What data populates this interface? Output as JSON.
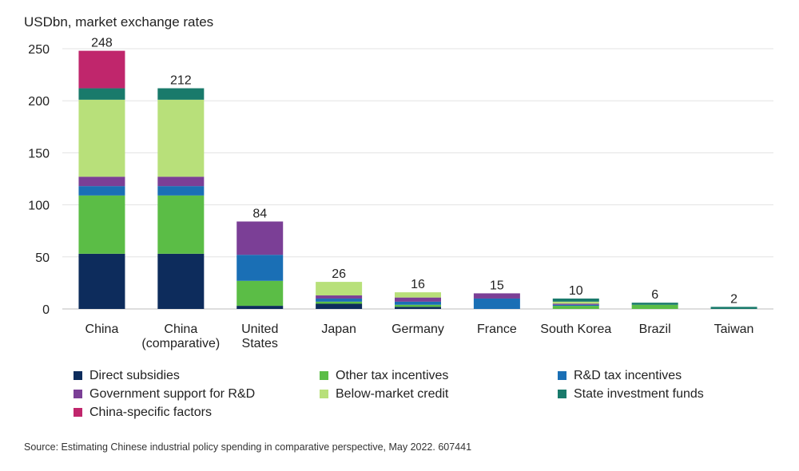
{
  "chart_data": {
    "type": "bar",
    "stacked": true,
    "ylabel": "USDbn, market exchange rates",
    "ylim": [
      0,
      250
    ],
    "yticks": [
      0,
      50,
      100,
      150,
      200,
      250
    ],
    "grid": true,
    "legend_position": "bottom",
    "categories": [
      "China",
      "China\n(comparative)",
      "United\nStates",
      "Japan",
      "Germany",
      "France",
      "South Korea",
      "Brazil",
      "Taiwan"
    ],
    "totals": [
      248,
      212,
      84,
      26,
      16,
      15,
      10,
      6,
      2
    ],
    "series": [
      {
        "name": "Direct subsidies",
        "color": "#0d2c5c",
        "values": [
          53,
          53,
          3,
          5,
          2,
          0,
          0,
          0,
          0
        ]
      },
      {
        "name": "Other tax incentives",
        "color": "#5bbd46",
        "values": [
          56,
          56,
          24,
          2,
          2,
          0,
          3,
          4,
          0
        ]
      },
      {
        "name": "R&D tax incentives",
        "color": "#1a6fb5",
        "values": [
          9,
          9,
          25,
          3,
          3,
          10,
          1,
          0,
          0
        ]
      },
      {
        "name": "Government support for R&D",
        "color": "#7b3f96",
        "values": [
          9,
          9,
          32,
          3,
          4,
          5,
          1,
          0,
          0
        ]
      },
      {
        "name": "Below-market credit",
        "color": "#b8e07a",
        "values": [
          74,
          74,
          0,
          13,
          5,
          0,
          2,
          0,
          0
        ]
      },
      {
        "name": "State investment funds",
        "color": "#197a6b",
        "values": [
          11,
          11,
          0,
          0,
          0,
          0,
          3,
          2,
          2
        ]
      },
      {
        "name": "China-specific factors",
        "color": "#c0266c",
        "values": [
          36,
          0,
          0,
          0,
          0,
          0,
          0,
          0,
          0
        ]
      }
    ],
    "source": "Source: Estimating Chinese industrial policy spending in comparative perspective, May 2022. 607441"
  }
}
